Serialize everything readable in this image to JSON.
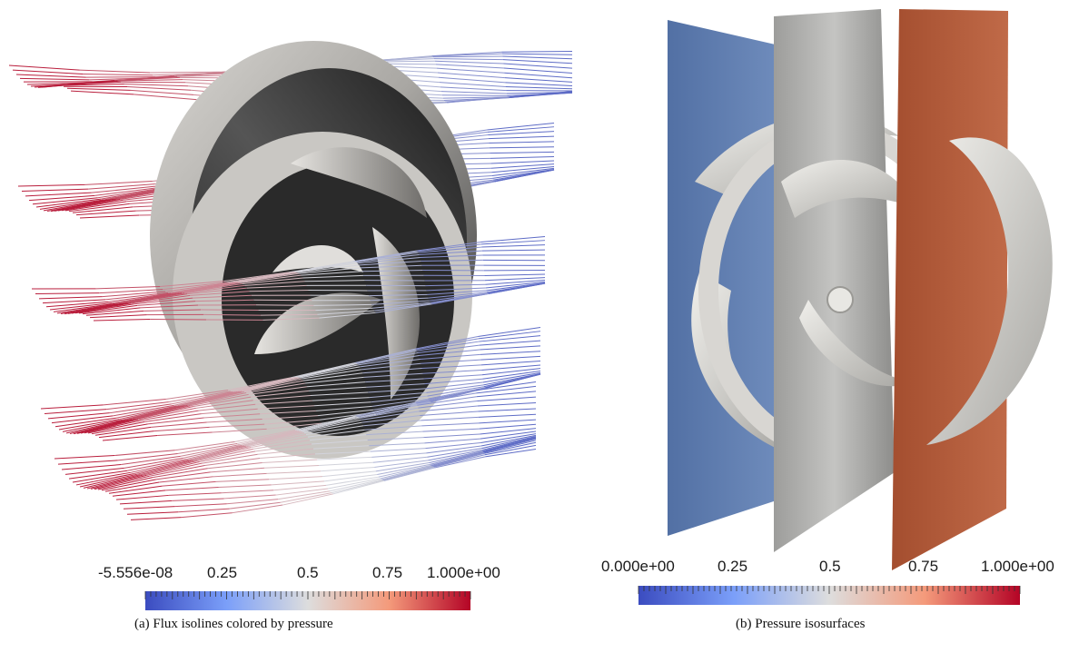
{
  "panel_a": {
    "colorbar_labels": [
      "-5.556e-08",
      "0.25",
      "0.5",
      "0.75",
      "1.000e+00"
    ],
    "caption": "(a)  Flux isolines colored by pressure"
  },
  "panel_b": {
    "colorbar_labels": [
      "0.000e+00",
      "0.25",
      "0.5",
      "0.75",
      "1.000e+00"
    ],
    "caption": "(b)  Pressure isosurfaces"
  },
  "colormap": {
    "low": "#3b4cc0",
    "mid": "#dddddd",
    "high": "#b40426"
  },
  "isosurface_colors": [
    "#5a75a8",
    "#b4b4b2",
    "#b25a38"
  ]
}
